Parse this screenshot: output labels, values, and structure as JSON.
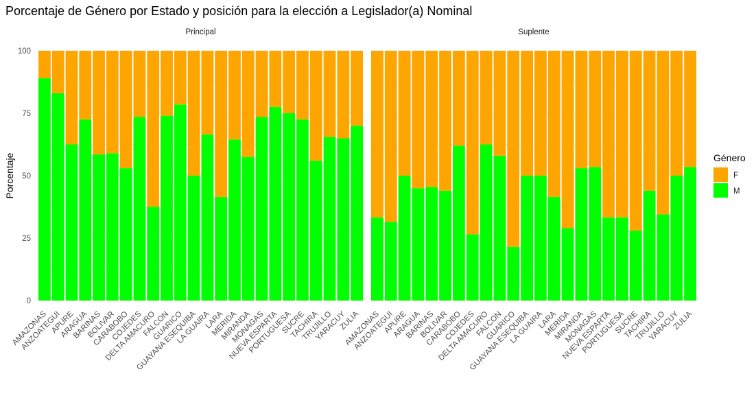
{
  "chart_data": {
    "type": "bar",
    "stacked": true,
    "title": "Porcentaje de Género por Estado y posición para la elección a Legislador(a) Nominal",
    "xlabel": "",
    "ylabel": "Porcentaje",
    "ylim": [
      0,
      100
    ],
    "yticks": [
      0,
      25,
      50,
      75,
      100
    ],
    "grid": true,
    "legend": {
      "title": "Género",
      "position": "right",
      "entries": [
        "F",
        "M"
      ]
    },
    "colors": {
      "F": "#FFA500",
      "M": "#00FF00"
    },
    "categories": [
      "AMAZONAS",
      "ANZOATEGUI",
      "APURE",
      "ARAGUA",
      "BARINAS",
      "BOLIVAR",
      "CARABOBO",
      "COJEDES",
      "DELTA AMACURO",
      "FALCON",
      "GUARICO",
      "GUAYANA ESEQUIBA",
      "LA GUAIRA",
      "LARA",
      "MERIDA",
      "MIRANDA",
      "MONAGAS",
      "NUEVA ESPARTA",
      "PORTUGUESA",
      "SUCRE",
      "TACHIRA",
      "TRUJILLO",
      "YARACUY",
      "ZULIA"
    ],
    "panels": [
      {
        "name": "Principal",
        "series": [
          {
            "name": "M",
            "values": [
              89,
              83,
              62.5,
              72.5,
              58.5,
              59,
              53,
              73.5,
              37.5,
              74,
              78.5,
              50,
              66.5,
              41.5,
              64.5,
              57.5,
              73.5,
              77.5,
              75,
              72.5,
              56,
              65.5,
              65,
              70
            ]
          },
          {
            "name": "F",
            "values": [
              11,
              17,
              37.5,
              27.5,
              41.5,
              41,
              47,
              26.5,
              62.5,
              26,
              21.5,
              50,
              33.5,
              58.5,
              35.5,
              42.5,
              26.5,
              22.5,
              25,
              27.5,
              44,
              34.5,
              35,
              30
            ]
          }
        ]
      },
      {
        "name": "Suplente",
        "series": [
          {
            "name": "M",
            "values": [
              33.3,
              31.5,
              50,
              45,
              45.5,
              44,
              62,
              26.5,
              62.5,
              58,
              21.5,
              50,
              50,
              41.5,
              29,
              53,
              53.5,
              33.3,
              33.3,
              28,
              44,
              34.5,
              50,
              53.5
            ]
          },
          {
            "name": "F",
            "values": [
              66.7,
              68.5,
              50,
              55,
              54.5,
              56,
              38,
              73.5,
              37.5,
              42,
              78.5,
              50,
              50,
              58.5,
              71,
              47,
              46.5,
              66.7,
              66.7,
              72,
              56,
              65.5,
              50,
              46.5
            ]
          }
        ]
      }
    ]
  }
}
